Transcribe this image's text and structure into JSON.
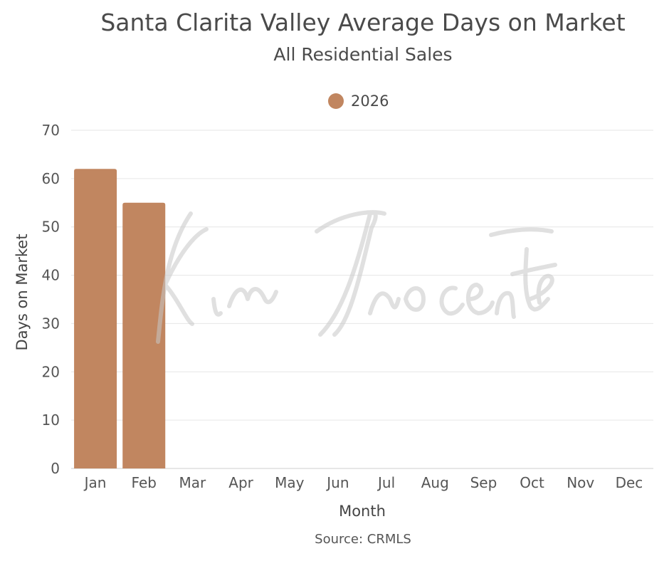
{
  "chart_data": {
    "type": "bar",
    "title": "Santa Clarita Valley Average Days on Market",
    "subtitle": "All Residential Sales",
    "xlabel": "Month",
    "ylabel": "Days on Market",
    "source": "Source: CRMLS",
    "categories": [
      "Jan",
      "Feb",
      "Mar",
      "Apr",
      "May",
      "Jun",
      "Jul",
      "Aug",
      "Sep",
      "Oct",
      "Nov",
      "Dec"
    ],
    "series": [
      {
        "name": "2026",
        "color": "#C18660",
        "values": [
          62,
          55,
          null,
          null,
          null,
          null,
          null,
          null,
          null,
          null,
          null,
          null
        ]
      }
    ],
    "ylim": [
      0,
      70
    ],
    "yticks": [
      0,
      10,
      20,
      30,
      40,
      50,
      60,
      70
    ],
    "grid": true,
    "legend_position": "top-center"
  },
  "watermark": "Kim Inocente"
}
